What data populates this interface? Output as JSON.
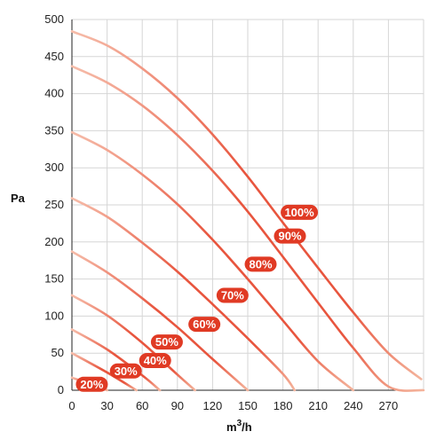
{
  "chart_data": {
    "type": "line",
    "xlabel": "m3/h",
    "xlabel_main": "m",
    "xlabel_sup": "3",
    "xlabel_tail": "/h",
    "ylabel": "Pa",
    "xlim": [
      0,
      300
    ],
    "ylim": [
      0,
      500
    ],
    "x_ticks": [
      0,
      30,
      60,
      90,
      120,
      150,
      180,
      210,
      240,
      270
    ],
    "y_ticks": [
      0,
      50,
      100,
      150,
      200,
      250,
      300,
      350,
      400,
      450,
      500
    ],
    "grid": true,
    "curve_color": "#e8553e",
    "pill_color": "#e03a24",
    "series": [
      {
        "name": "100%",
        "label_at": [
          194,
          240
        ],
        "points": [
          [
            0,
            484
          ],
          [
            30,
            465
          ],
          [
            60,
            434
          ],
          [
            90,
            394
          ],
          [
            120,
            345
          ],
          [
            150,
            288
          ],
          [
            180,
            226
          ],
          [
            210,
            165
          ],
          [
            240,
            105
          ],
          [
            270,
            50
          ],
          [
            298,
            15
          ]
        ]
      },
      {
        "name": "90%",
        "label_at": [
          186,
          208
        ],
        "points": [
          [
            0,
            437
          ],
          [
            30,
            415
          ],
          [
            60,
            384
          ],
          [
            90,
            344
          ],
          [
            120,
            296
          ],
          [
            150,
            241
          ],
          [
            180,
            180
          ],
          [
            210,
            118
          ],
          [
            240,
            57
          ],
          [
            270,
            5
          ],
          [
            300,
            0
          ]
        ]
      },
      {
        "name": "80%",
        "label_at": [
          161,
          170
        ],
        "points": [
          [
            0,
            348
          ],
          [
            30,
            324
          ],
          [
            60,
            291
          ],
          [
            90,
            251
          ],
          [
            120,
            203
          ],
          [
            150,
            150
          ],
          [
            180,
            94
          ],
          [
            210,
            39
          ],
          [
            240,
            0
          ]
        ]
      },
      {
        "name": "70%",
        "label_at": [
          137,
          128
        ],
        "points": [
          [
            0,
            259
          ],
          [
            30,
            234
          ],
          [
            60,
            199
          ],
          [
            90,
            160
          ],
          [
            120,
            116
          ],
          [
            150,
            70
          ],
          [
            180,
            22
          ],
          [
            190,
            0
          ]
        ]
      },
      {
        "name": "60%",
        "label_at": [
          113,
          89
        ],
        "points": [
          [
            0,
            187
          ],
          [
            30,
            159
          ],
          [
            60,
            124
          ],
          [
            90,
            85
          ],
          [
            120,
            42
          ],
          [
            150,
            0
          ]
        ]
      },
      {
        "name": "50%",
        "label_at": [
          81,
          65
        ],
        "points": [
          [
            0,
            128
          ],
          [
            30,
            101
          ],
          [
            60,
            64
          ],
          [
            90,
            21
          ],
          [
            105,
            0
          ]
        ]
      },
      {
        "name": "40%",
        "label_at": [
          71,
          40
        ],
        "points": [
          [
            0,
            82
          ],
          [
            30,
            55
          ],
          [
            60,
            20
          ],
          [
            75,
            0
          ]
        ]
      },
      {
        "name": "30%",
        "label_at": [
          46,
          26
        ],
        "points": [
          [
            0,
            50
          ],
          [
            30,
            24
          ],
          [
            55,
            0
          ]
        ]
      },
      {
        "name": "20%",
        "label_at": [
          17,
          8
        ],
        "points": [
          [
            0,
            17
          ],
          [
            20,
            6
          ],
          [
            30,
            0
          ]
        ]
      }
    ]
  }
}
